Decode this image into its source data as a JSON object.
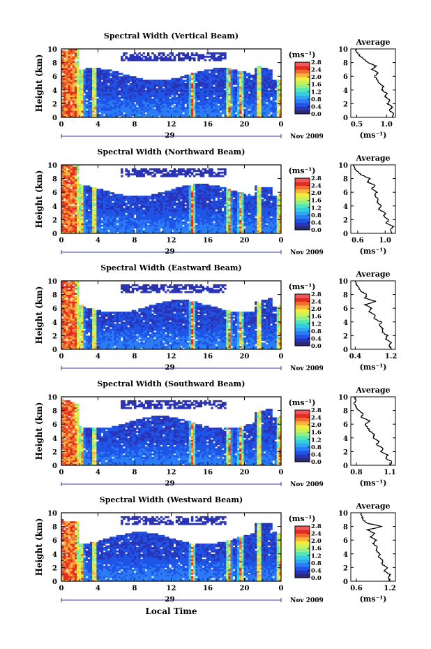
{
  "figure": {
    "month_label": "Nov 2009",
    "day_label": "29",
    "xlabel_bottom": "Local Time",
    "colorbar_unit": "(ms⁻¹)",
    "colorbar_ticks": [
      "0.0",
      "0.4",
      "0.8",
      "1.2",
      "1.6",
      "2.0",
      "2.4",
      "2.8"
    ],
    "colorscale": [
      "#2a2a78",
      "#2a34b8",
      "#1f55e6",
      "#2b7cf5",
      "#2fa7f2",
      "#33cfe0",
      "#55e6b8",
      "#8ff08a",
      "#c8f25a",
      "#f3ec3c",
      "#f9b43a",
      "#f36b2e",
      "#e32b25",
      "#f05a5a"
    ]
  },
  "chart_data": [
    {
      "type": "heatmap",
      "title": "Spectral Width (Vertical Beam)",
      "ylabel": "Height (km)",
      "xticks": [
        "0",
        "4",
        "8",
        "12",
        "16",
        "20",
        "0"
      ],
      "yticks": [
        "0",
        "2",
        "4",
        "6",
        "8",
        "10"
      ],
      "xlim": [
        0,
        24
      ],
      "ylim": [
        0,
        10
      ],
      "clim": [
        0.0,
        2.8
      ],
      "profile": {
        "title": "Average",
        "xlabel": "(ms⁻¹)",
        "xticks": [
          "0.5",
          "1.0"
        ],
        "xlim": [
          0.4,
          1.15
        ],
        "yticks": [
          "0",
          "2",
          "4",
          "6",
          "8",
          "10"
        ],
        "values": [
          [
            1.1,
            0
          ],
          [
            1.12,
            0.5
          ],
          [
            1.05,
            1
          ],
          [
            1.1,
            1.5
          ],
          [
            1.02,
            2
          ],
          [
            1.06,
            2.5
          ],
          [
            0.98,
            3
          ],
          [
            1.0,
            3.5
          ],
          [
            0.92,
            4
          ],
          [
            0.95,
            4.5
          ],
          [
            0.88,
            5
          ],
          [
            0.85,
            5.5
          ],
          [
            0.8,
            6
          ],
          [
            0.86,
            6.5
          ],
          [
            0.76,
            7
          ],
          [
            0.82,
            7.5
          ],
          [
            0.68,
            8
          ],
          [
            0.62,
            8.5
          ],
          [
            0.55,
            9
          ],
          [
            0.5,
            9.5
          ],
          [
            0.48,
            10
          ]
        ]
      }
    },
    {
      "type": "heatmap",
      "title": "Spectral Width (Northward Beam)",
      "ylabel": "Height (km)",
      "xticks": [
        "0",
        "4",
        "8",
        "12",
        "16",
        "20",
        "0"
      ],
      "yticks": [
        "0",
        "2",
        "4",
        "6",
        "8",
        "10"
      ],
      "xlim": [
        0,
        24
      ],
      "ylim": [
        0,
        10
      ],
      "clim": [
        0.0,
        2.8
      ],
      "profile": {
        "title": "Average",
        "xlabel": "(ms⁻¹)",
        "xticks": [
          "0.6",
          "1.0"
        ],
        "xlim": [
          0.5,
          1.15
        ],
        "yticks": [
          "0",
          "2",
          "4",
          "6",
          "8",
          "10"
        ],
        "values": [
          [
            1.1,
            0
          ],
          [
            1.08,
            0.5
          ],
          [
            1.12,
            1
          ],
          [
            1.02,
            1.5
          ],
          [
            1.05,
            2
          ],
          [
            0.98,
            2.5
          ],
          [
            1.0,
            3
          ],
          [
            0.9,
            3.5
          ],
          [
            0.95,
            4
          ],
          [
            0.88,
            4.5
          ],
          [
            0.9,
            5
          ],
          [
            0.84,
            5.5
          ],
          [
            0.88,
            6
          ],
          [
            0.8,
            6.5
          ],
          [
            0.86,
            7
          ],
          [
            0.74,
            7.5
          ],
          [
            0.78,
            8
          ],
          [
            0.66,
            8.5
          ],
          [
            0.6,
            9
          ],
          [
            0.56,
            9.5
          ],
          [
            0.54,
            10
          ]
        ]
      }
    },
    {
      "type": "heatmap",
      "title": "Spectral Width (Eastward Beam)",
      "ylabel": "Height (km)",
      "xticks": [
        "0",
        "4",
        "8",
        "12",
        "16",
        "20",
        "0"
      ],
      "yticks": [
        "0",
        "2",
        "4",
        "6",
        "8",
        "10"
      ],
      "xlim": [
        0,
        24
      ],
      "ylim": [
        0,
        10
      ],
      "clim": [
        0.0,
        2.8
      ],
      "profile": {
        "title": "Average",
        "xlabel": "(ms⁻¹)",
        "xticks": [
          "0.4",
          "1.2"
        ],
        "xlim": [
          0.3,
          1.3
        ],
        "yticks": [
          "0",
          "2",
          "4",
          "6",
          "8",
          "10"
        ],
        "values": [
          [
            1.22,
            0
          ],
          [
            1.15,
            0.5
          ],
          [
            1.2,
            1
          ],
          [
            1.08,
            1.5
          ],
          [
            1.12,
            2
          ],
          [
            1.0,
            2.5
          ],
          [
            1.02,
            3
          ],
          [
            0.95,
            3.5
          ],
          [
            0.98,
            4
          ],
          [
            0.82,
            4.5
          ],
          [
            0.85,
            5
          ],
          [
            0.7,
            5.5
          ],
          [
            0.76,
            6
          ],
          [
            0.62,
            6.5
          ],
          [
            0.85,
            7
          ],
          [
            0.62,
            7.5
          ],
          [
            0.66,
            8
          ],
          [
            0.52,
            8.5
          ],
          [
            0.48,
            9
          ],
          [
            0.42,
            9.5
          ],
          [
            0.4,
            10
          ]
        ]
      }
    },
    {
      "type": "heatmap",
      "title": "Spectral Width (Southward Beam)",
      "ylabel": "Height (km)",
      "xticks": [
        "0",
        "4",
        "8",
        "12",
        "16",
        "20",
        "0"
      ],
      "yticks": [
        "0",
        "2",
        "4",
        "6",
        "8",
        "10"
      ],
      "xlim": [
        0,
        24
      ],
      "ylim": [
        0,
        10
      ],
      "clim": [
        0.0,
        2.8
      ],
      "profile": {
        "title": "Average",
        "xlabel": "(ms⁻¹)",
        "xticks": [
          "0.8",
          "1.1"
        ],
        "xlim": [
          0.75,
          1.15
        ],
        "yticks": [
          "0",
          "2",
          "4",
          "6",
          "8",
          "10"
        ],
        "values": [
          [
            1.1,
            0
          ],
          [
            1.12,
            0.5
          ],
          [
            1.06,
            1
          ],
          [
            1.08,
            1.5
          ],
          [
            1.02,
            2
          ],
          [
            1.04,
            2.5
          ],
          [
            0.98,
            3
          ],
          [
            1.0,
            3.5
          ],
          [
            0.95,
            4
          ],
          [
            0.96,
            4.5
          ],
          [
            0.92,
            5
          ],
          [
            0.9,
            5.5
          ],
          [
            0.88,
            6
          ],
          [
            0.92,
            6.5
          ],
          [
            0.84,
            7
          ],
          [
            0.86,
            7.5
          ],
          [
            0.82,
            8
          ],
          [
            0.8,
            8.5
          ],
          [
            0.78,
            9
          ],
          [
            0.8,
            9.5
          ],
          [
            0.78,
            10
          ]
        ]
      }
    },
    {
      "type": "heatmap",
      "title": "Spectral Width (Westward Beam)",
      "ylabel": "Height (km)",
      "xticks": [
        "0",
        "4",
        "8",
        "12",
        "16",
        "20",
        "0"
      ],
      "yticks": [
        "0",
        "2",
        "4",
        "6",
        "8",
        "10"
      ],
      "xlim": [
        0,
        24
      ],
      "ylim": [
        0,
        10
      ],
      "clim": [
        0.0,
        2.8
      ],
      "profile": {
        "title": "Average",
        "xlabel": "(ms⁻¹)",
        "xticks": [
          "0.6",
          "1.2"
        ],
        "xlim": [
          0.5,
          1.3
        ],
        "yticks": [
          "0",
          "2",
          "4",
          "6",
          "8",
          "10"
        ],
        "values": [
          [
            1.2,
            0
          ],
          [
            1.18,
            0.5
          ],
          [
            1.2,
            1
          ],
          [
            1.1,
            1.5
          ],
          [
            1.15,
            2
          ],
          [
            1.05,
            2.5
          ],
          [
            1.08,
            3
          ],
          [
            1.0,
            3.5
          ],
          [
            1.02,
            4
          ],
          [
            0.95,
            4.5
          ],
          [
            0.98,
            5
          ],
          [
            0.9,
            5.5
          ],
          [
            0.95,
            6
          ],
          [
            0.86,
            6.5
          ],
          [
            0.92,
            7
          ],
          [
            0.8,
            7.5
          ],
          [
            1.05,
            8
          ],
          [
            0.78,
            8.5
          ],
          [
            0.72,
            9
          ],
          [
            0.7,
            9.5
          ],
          [
            0.68,
            10
          ]
        ]
      }
    }
  ]
}
